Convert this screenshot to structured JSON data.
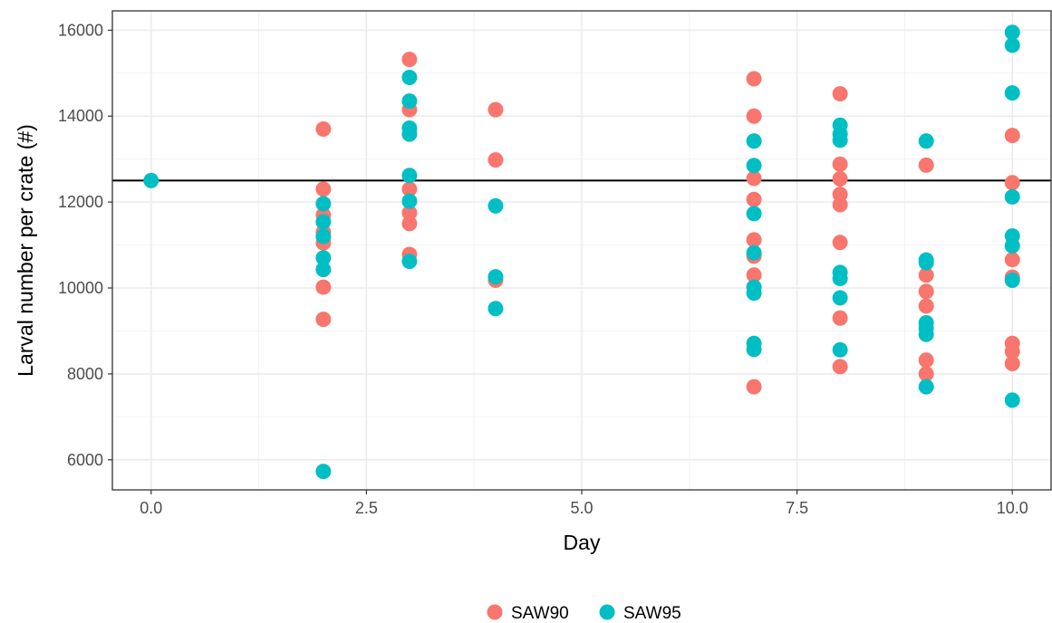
{
  "chart_data": {
    "type": "scatter",
    "title": "",
    "xlabel": "Day",
    "ylabel": "Larval number per crate (#)",
    "xlim": [
      -0.45,
      10.45
    ],
    "ylim": [
      5300,
      16450
    ],
    "x_ticks": [
      0,
      2.5,
      5,
      7.5,
      10
    ],
    "x_tick_labels": [
      "0.0",
      "2.5",
      "5.0",
      "7.5",
      "10.0"
    ],
    "y_ticks": [
      6000,
      8000,
      10000,
      12000,
      14000,
      16000
    ],
    "y_tick_labels": [
      "6000",
      "8000",
      "10000",
      "12000",
      "14000",
      "16000"
    ],
    "grid": true,
    "hline": 12500,
    "legend_position": "bottom",
    "series": [
      {
        "name": "SAW90",
        "color": "#F8766D",
        "points": [
          [
            2,
            13700
          ],
          [
            2,
            12300
          ],
          [
            2,
            11700
          ],
          [
            2,
            11300
          ],
          [
            2,
            11050
          ],
          [
            2,
            10020
          ],
          [
            2,
            9270
          ],
          [
            3,
            15320
          ],
          [
            3,
            14150
          ],
          [
            3,
            12300
          ],
          [
            3,
            11750
          ],
          [
            3,
            11500
          ],
          [
            3,
            10780
          ],
          [
            4,
            14150
          ],
          [
            4,
            12980
          ],
          [
            4,
            10180
          ],
          [
            7,
            14870
          ],
          [
            7,
            14000
          ],
          [
            7,
            12550
          ],
          [
            7,
            12060
          ],
          [
            7,
            11120
          ],
          [
            7,
            10740
          ],
          [
            7,
            10300
          ],
          [
            7,
            7700
          ],
          [
            8,
            14520
          ],
          [
            8,
            12880
          ],
          [
            8,
            12540
          ],
          [
            8,
            12180
          ],
          [
            8,
            11940
          ],
          [
            8,
            11060
          ],
          [
            8,
            9300
          ],
          [
            8,
            8170
          ],
          [
            9,
            12860
          ],
          [
            9,
            10300
          ],
          [
            9,
            9920
          ],
          [
            9,
            9580
          ],
          [
            9,
            8320
          ],
          [
            9,
            8000
          ],
          [
            10,
            13550
          ],
          [
            10,
            12450
          ],
          [
            10,
            10660
          ],
          [
            10,
            10250
          ],
          [
            10,
            8710
          ],
          [
            10,
            8520
          ],
          [
            10,
            8240
          ]
        ]
      },
      {
        "name": "SAW95",
        "color": "#00BFC4",
        "points": [
          [
            0,
            12500
          ],
          [
            2,
            11960
          ],
          [
            2,
            11540
          ],
          [
            2,
            11200
          ],
          [
            2,
            10700
          ],
          [
            2,
            10430
          ],
          [
            2,
            5730
          ],
          [
            3,
            14900
          ],
          [
            3,
            14350
          ],
          [
            3,
            13720
          ],
          [
            3,
            13580
          ],
          [
            3,
            12620
          ],
          [
            3,
            12020
          ],
          [
            3,
            10620
          ],
          [
            4,
            11910
          ],
          [
            4,
            10260
          ],
          [
            4,
            9520
          ],
          [
            7,
            13420
          ],
          [
            7,
            12850
          ],
          [
            7,
            11730
          ],
          [
            7,
            10820
          ],
          [
            7,
            10020
          ],
          [
            7,
            9880
          ],
          [
            7,
            8710
          ],
          [
            7,
            8570
          ],
          [
            8,
            13790
          ],
          [
            8,
            13580
          ],
          [
            8,
            13440
          ],
          [
            8,
            10360
          ],
          [
            8,
            10220
          ],
          [
            8,
            9770
          ],
          [
            8,
            8560
          ],
          [
            9,
            13420
          ],
          [
            9,
            10650
          ],
          [
            9,
            10590
          ],
          [
            9,
            9190
          ],
          [
            9,
            9060
          ],
          [
            9,
            8920
          ],
          [
            9,
            7700
          ],
          [
            10,
            15950
          ],
          [
            10,
            15650
          ],
          [
            10,
            14540
          ],
          [
            10,
            12120
          ],
          [
            10,
            11210
          ],
          [
            10,
            10980
          ],
          [
            10,
            10180
          ],
          [
            10,
            7390
          ]
        ]
      }
    ]
  }
}
